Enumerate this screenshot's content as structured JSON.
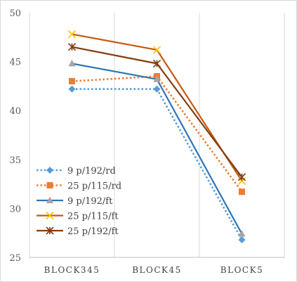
{
  "chart_data": {
    "type": "line",
    "categories": [
      "BLOCK345",
      "BLOCK45",
      "BLOCK5"
    ],
    "ylim": [
      25,
      50
    ],
    "yticks": [
      25,
      30,
      35,
      40,
      45,
      50
    ],
    "grid": "vertical",
    "legend_position": "bottom-left",
    "series": [
      {
        "name": "9 p/192/rd",
        "values": [
          42.2,
          42.2,
          26.8
        ],
        "color": "#5b9bd5",
        "dash": "dotted",
        "marker": "diamond"
      },
      {
        "name": "25 p/115/rd",
        "values": [
          43.0,
          43.5,
          31.7
        ],
        "color": "#ed7d31",
        "dash": "dotted",
        "marker": "square"
      },
      {
        "name": "9 p/192/ft",
        "values": [
          44.8,
          43.2,
          27.4
        ],
        "color": "#2e75b6",
        "dash": "solid",
        "marker": "triangle"
      },
      {
        "name": "25 p/115/ft",
        "values": [
          47.8,
          46.2,
          32.8
        ],
        "color": "#c55a11",
        "dash": "solid",
        "marker": "x"
      },
      {
        "name": "25 p/192/ft",
        "values": [
          46.5,
          44.8,
          33.2
        ],
        "color": "#843c0c",
        "dash": "solid",
        "marker": "star"
      }
    ]
  }
}
